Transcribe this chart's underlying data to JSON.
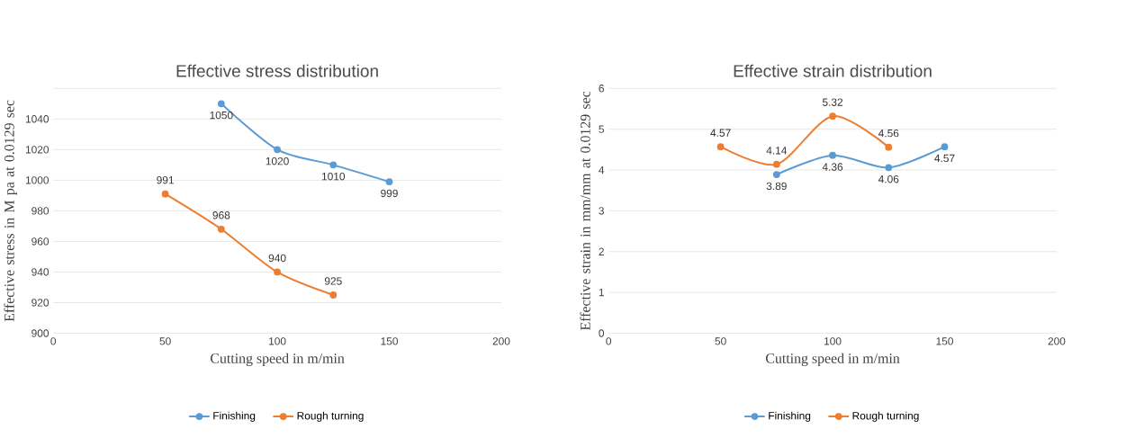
{
  "chart_data": [
    {
      "type": "line",
      "title": "Effective stress distribution",
      "xlabel": "Cutting speed in m/min",
      "ylabel": "Effective stress in M pa at 0.0129 sec",
      "xlim": [
        0,
        200
      ],
      "xticks": [
        0,
        50,
        100,
        150,
        200
      ],
      "ylim": [
        900,
        1060
      ],
      "yticks": [
        900,
        920,
        940,
        960,
        980,
        1000,
        1020,
        1040,
        {
          "value": 1060,
          "label": null
        }
      ],
      "grid": "y",
      "legend": "bottom",
      "marker": "circle",
      "data_labels": true,
      "series": [
        {
          "name": "Finishing",
          "color": "#5b9bd5",
          "x": [
            75,
            100,
            125,
            150
          ],
          "values": [
            1050,
            1020,
            1010,
            999
          ]
        },
        {
          "name": "Rough turning",
          "color": "#ed7d31",
          "x": [
            50,
            75,
            100,
            125
          ],
          "values": [
            991,
            968,
            940,
            925
          ]
        }
      ]
    },
    {
      "type": "line",
      "title": "Effective strain distribution",
      "xlabel": "Cutting speed in m/min",
      "ylabel": "Effective strain in mm/mm at 0.0129 sec",
      "xlim": [
        0,
        200
      ],
      "xticks": [
        0,
        50,
        100,
        150,
        200
      ],
      "ylim": [
        0,
        6
      ],
      "yticks": [
        0,
        1,
        2,
        3,
        4,
        5,
        6
      ],
      "grid": "y",
      "legend": "bottom",
      "marker": "circle",
      "data_labels": true,
      "series": [
        {
          "name": "Finishing",
          "color": "#5b9bd5",
          "x": [
            75,
            100,
            125,
            150
          ],
          "values": [
            3.89,
            4.36,
            4.06,
            4.57
          ]
        },
        {
          "name": "Rough turning",
          "color": "#ed7d31",
          "x": [
            50,
            75,
            100,
            125
          ],
          "values": [
            4.57,
            4.14,
            5.32,
            4.56
          ]
        }
      ]
    }
  ]
}
